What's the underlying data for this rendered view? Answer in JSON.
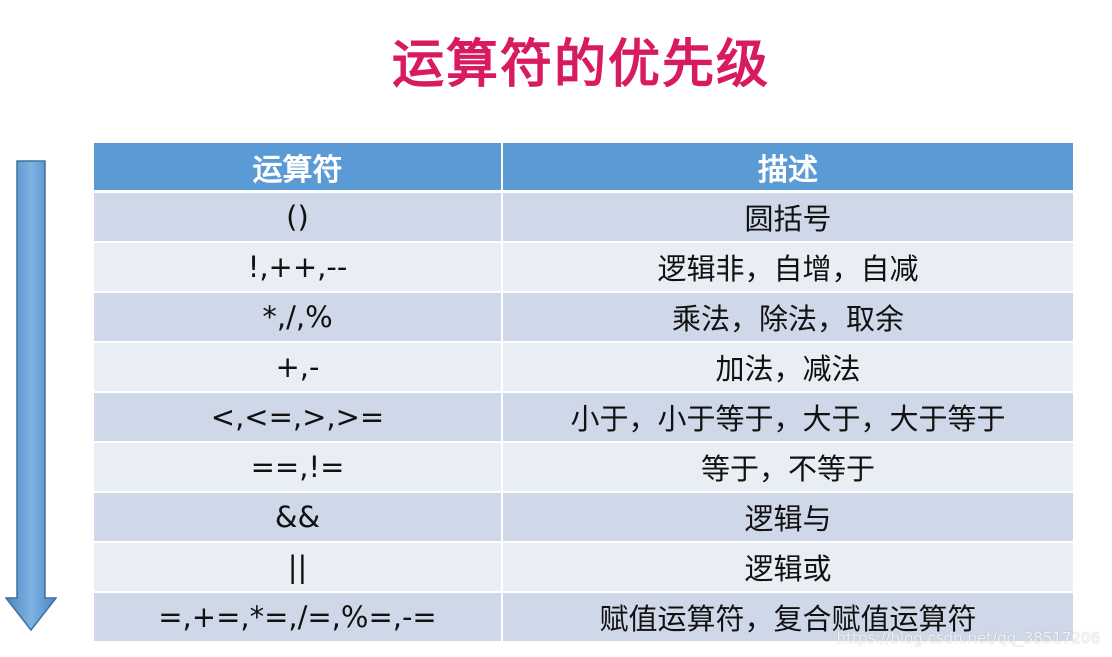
{
  "title": "运算符的优先级",
  "table": {
    "headers": {
      "operator": "运算符",
      "description": "描述"
    },
    "rows": [
      {
        "operator": "()",
        "description": "圆括号"
      },
      {
        "operator": "!,++,--",
        "description": "逻辑非，自增，自减"
      },
      {
        "operator": "*,/,%",
        "description": "乘法，除法，取余"
      },
      {
        "operator": "+,-",
        "description": "加法，减法"
      },
      {
        "operator": "<,<=,>,>=",
        "description": "小于，小于等于，大于，大于等于"
      },
      {
        "operator": "==,!=",
        "description": "等于，不等于"
      },
      {
        "operator": "&&",
        "description": "逻辑与"
      },
      {
        "operator": "||",
        "description": "逻辑或"
      },
      {
        "operator": "=,+=,*=,/=,%=,-=",
        "description": "赋值运算符，复合赋值运算符"
      }
    ]
  },
  "arrow": {
    "icon": "arrow-down-icon",
    "fill": "#5b9bd5",
    "stroke": "#41719c"
  },
  "watermark": "https://blog.csdn.net/qq_38517206"
}
